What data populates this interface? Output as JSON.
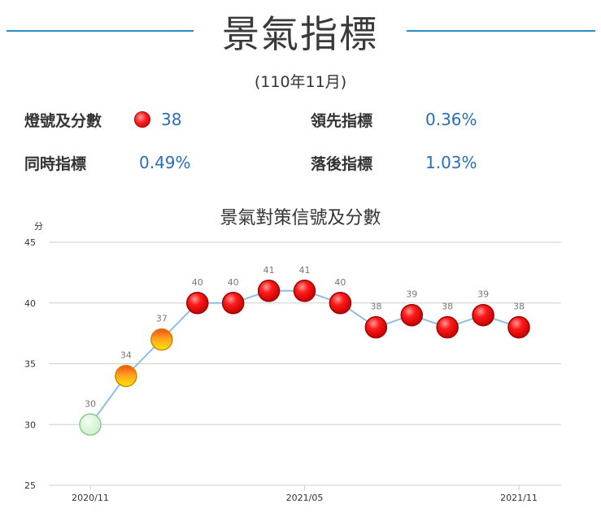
{
  "header": {
    "title": "景氣指標",
    "period": "(110年11月)"
  },
  "indicators": {
    "signal_label": "燈號及分數",
    "signal_value": "38",
    "leading_label": "領先指標",
    "leading_value": "0.36%",
    "coincident_label": "同時指標",
    "coincident_value": "0.49%",
    "lagging_label": "落後指標",
    "lagging_value": "1.03%"
  },
  "chart_data": {
    "type": "line",
    "title": "景氣對策信號及分數",
    "ylabel": "分",
    "ylim": [
      25,
      45
    ],
    "yticks": [
      25,
      30,
      35,
      40,
      45
    ],
    "x": [
      "2020/11",
      "2020/12",
      "2021/01",
      "2021/02",
      "2021/03",
      "2021/04",
      "2021/05",
      "2021/06",
      "2021/07",
      "2021/08",
      "2021/09",
      "2021/10",
      "2021/11"
    ],
    "xtick_labels": [
      "2020/11",
      "2021/05",
      "2021/11"
    ],
    "values": [
      30,
      34,
      37,
      40,
      40,
      41,
      41,
      40,
      38,
      39,
      38,
      39,
      38
    ],
    "marker_colors": [
      "green",
      "yellow-red",
      "yellow-red",
      "red",
      "red",
      "red",
      "red",
      "red",
      "red",
      "red",
      "red",
      "red",
      "red"
    ],
    "grid": true,
    "line_color": "#8fbfe0"
  }
}
